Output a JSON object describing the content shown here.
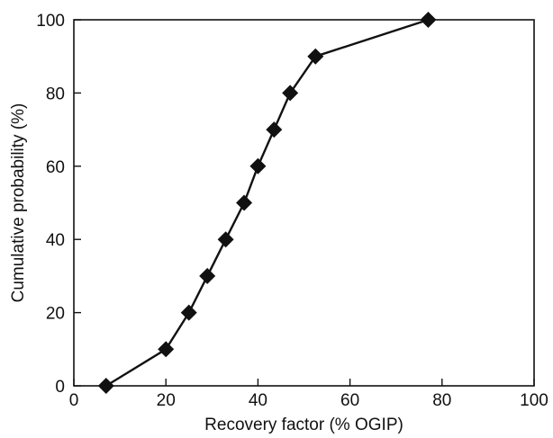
{
  "chart_data": {
    "type": "line",
    "title": "",
    "xlabel": "Recovery factor (% OGIP)",
    "ylabel": "Cumulative probability (%)",
    "xlim": [
      0,
      100
    ],
    "ylim": [
      0,
      100
    ],
    "x_ticks": [
      0,
      20,
      40,
      60,
      80,
      100
    ],
    "y_ticks": [
      0,
      20,
      40,
      60,
      80,
      100
    ],
    "grid": false,
    "legend": "none",
    "marker": "diamond",
    "color": "#111111",
    "series": [
      {
        "x": [
          7,
          20,
          25,
          29,
          33,
          37,
          40,
          43.5,
          47,
          52.5,
          77
        ],
        "y": [
          0,
          10,
          20,
          30,
          40,
          50,
          60,
          70,
          80,
          90,
          100
        ]
      }
    ]
  }
}
